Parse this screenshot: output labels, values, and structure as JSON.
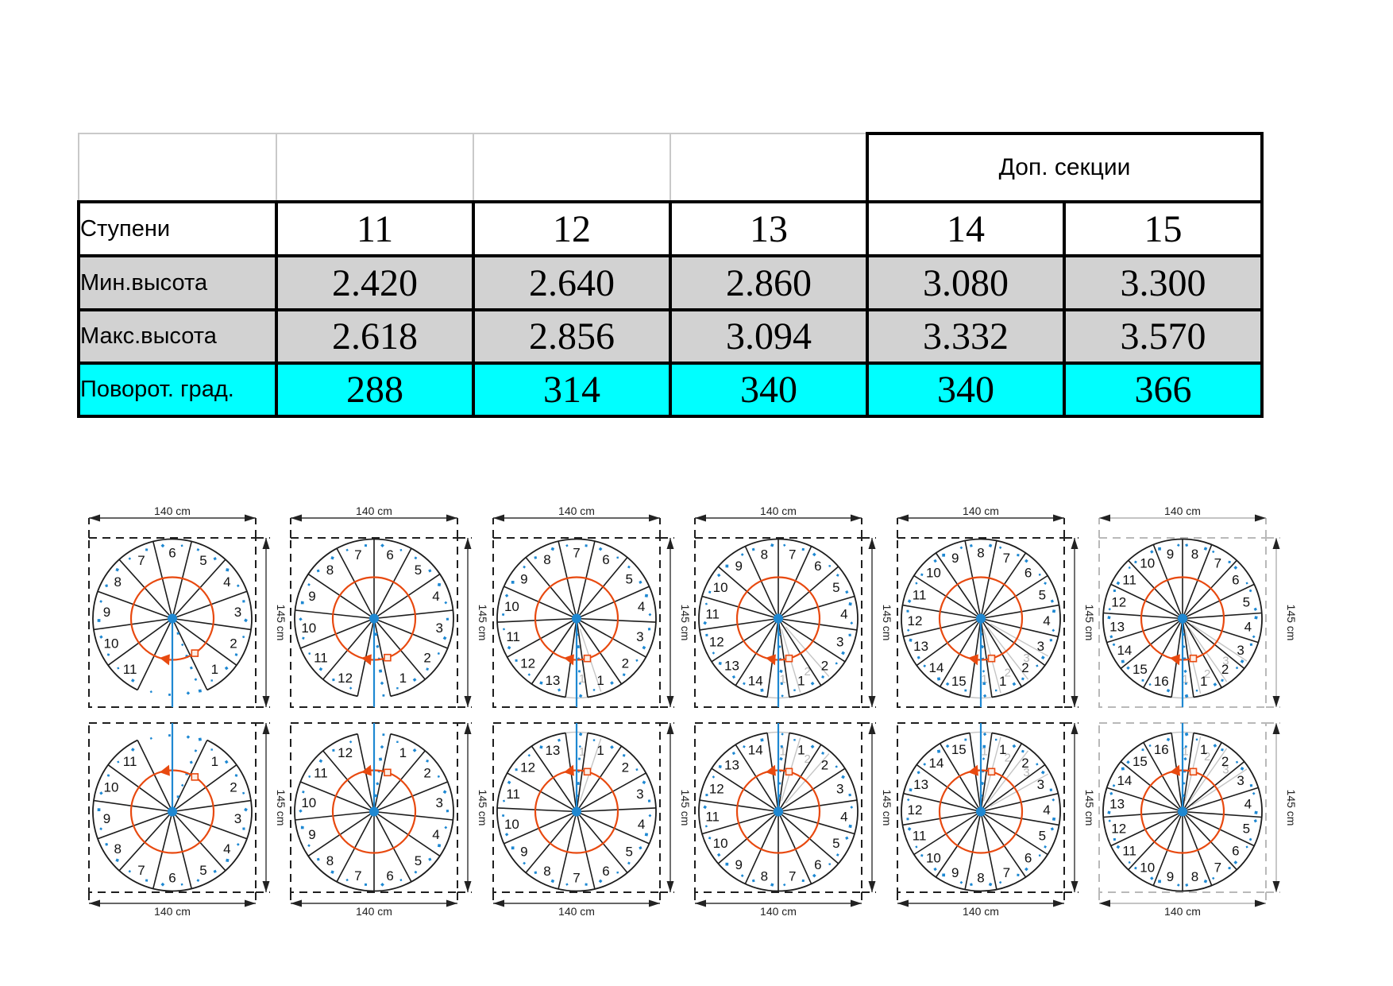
{
  "colors": {
    "row_gray": "#d2d2d2",
    "row_cyan": "#00ffff",
    "step_line": "#1c1c1c",
    "rotation_orange": "#e8490f",
    "pole_blue": "#1e88d2",
    "ghost_gray": "#c5c5c5",
    "grayed_outline": "#b9b9b9"
  },
  "table": {
    "extra_header": "Доп. секции",
    "rows": [
      {
        "label": "Ступени",
        "values": [
          "11",
          "12",
          "13",
          "14",
          "15"
        ]
      },
      {
        "label": "Мин.высота",
        "values": [
          "2.420",
          "2.640",
          "2.860",
          "3.080",
          "3.300"
        ]
      },
      {
        "label": "Макс.высота",
        "values": [
          "2.618",
          "2.856",
          "3.094",
          "3.332",
          "3.570"
        ]
      },
      {
        "label": "Поворот. град.",
        "values": [
          "288",
          "314",
          "340",
          "340",
          "366"
        ]
      }
    ]
  },
  "diagrams": {
    "width_label": "140 cm",
    "height_label": "145 cm",
    "columns": [
      {
        "steps": 11,
        "ghost_steps": 0,
        "grayed": false
      },
      {
        "steps": 12,
        "ghost_steps": 0,
        "grayed": false
      },
      {
        "steps": 13,
        "ghost_steps": 1,
        "grayed": false
      },
      {
        "steps": 14,
        "ghost_steps": 2,
        "grayed": false
      },
      {
        "steps": 15,
        "ghost_steps": 3,
        "grayed": false
      },
      {
        "steps": 16,
        "ghost_steps": 3,
        "grayed": true
      }
    ],
    "rows": [
      {
        "dimension_position": "top"
      },
      {
        "dimension_position": "bottom"
      }
    ]
  }
}
